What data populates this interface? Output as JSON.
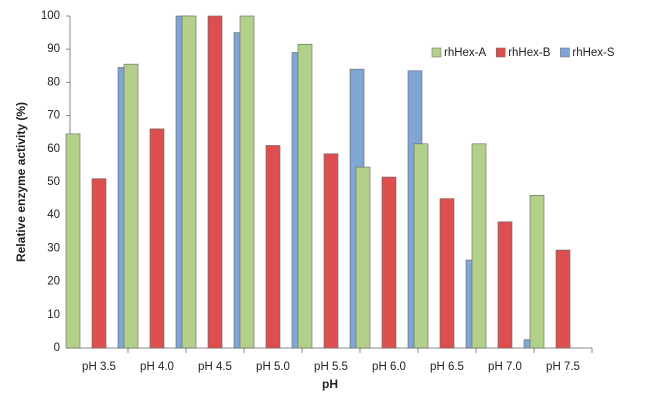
{
  "chart_data": {
    "type": "bar",
    "x_label": "pH",
    "y_label": "Relative enzyme activity (%)",
    "categories": [
      "pH 3.5",
      "pH 4.0",
      "pH 4.5",
      "pH 5.0",
      "pH 5.5",
      "pH 6.0",
      "pH 6.5",
      "pH 7.0",
      "pH 7.5"
    ],
    "series": [
      {
        "name": "rhHex-A",
        "color": "#b3d08a",
        "values": [
          64.5,
          85.5,
          100,
          100,
          91.5,
          54.5,
          61.5,
          61.5,
          46
        ]
      },
      {
        "name": "rhHex-B",
        "color": "#dd4f4f",
        "values": [
          51,
          66,
          100,
          61,
          58.5,
          51.5,
          45,
          38,
          29.5
        ]
      },
      {
        "name": "rhHex-S",
        "color": "#80a6d6",
        "values": [
          84.5,
          100,
          95,
          89,
          84,
          83.5,
          26.5,
          2.5,
          null
        ]
      }
    ],
    "ylim": [
      0,
      100
    ],
    "yticks": [
      0,
      10,
      20,
      30,
      40,
      50,
      60,
      70,
      80,
      90,
      100
    ],
    "grid": false,
    "legend": "upper right"
  }
}
